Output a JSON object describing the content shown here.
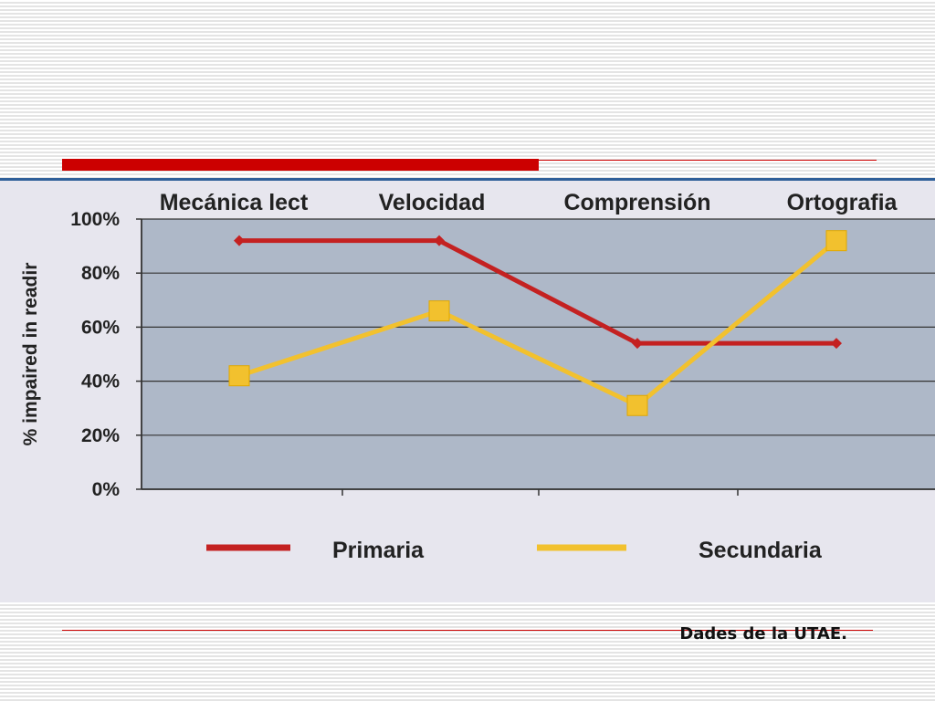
{
  "slide": {
    "source_note": "Dades de la UTAE."
  },
  "chart_data": {
    "type": "line",
    "categories": [
      "Mecánica lect",
      "Velocidad",
      "Comprensión",
      "Ortografia"
    ],
    "series": [
      {
        "name": "Primaria",
        "values": [
          92,
          92,
          54,
          54
        ],
        "color": "#c42121",
        "marker": "diamond"
      },
      {
        "name": "Secundaria",
        "values": [
          42,
          66,
          31,
          92
        ],
        "color": "#f2c12e",
        "marker": "square"
      }
    ],
    "ylabel": "% impaired in readir",
    "ylim": [
      0,
      100
    ],
    "yticks": [
      0,
      20,
      40,
      60,
      80,
      100
    ],
    "ytick_labels": [
      "0%",
      "20%",
      "40%",
      "60%",
      "80%",
      "100%"
    ],
    "grid": true,
    "plot_background": "#aeb8c8",
    "legend_position": "bottom"
  }
}
